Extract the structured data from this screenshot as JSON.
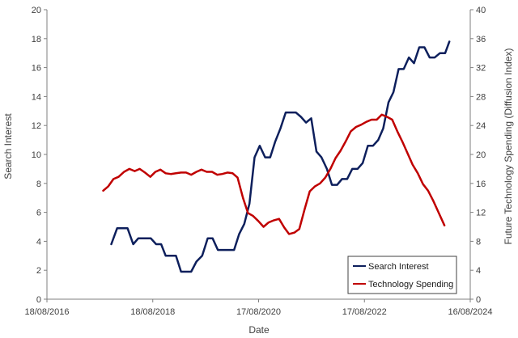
{
  "chart_data": {
    "type": "line",
    "title": "",
    "xlabel": "Date",
    "ylabel_left": "Search Interest",
    "ylabel_right": "Future Technology Spending (Diffusion Index)",
    "x_axis_type": "date",
    "xlim": [
      "2016-08-18",
      "2024-08-16"
    ],
    "x_ticks": [
      "18/08/2016",
      "18/08/2018",
      "17/08/2020",
      "17/08/2022",
      "16/08/2024"
    ],
    "ylim_left": [
      0,
      20
    ],
    "yticks_left": [
      "0",
      "2",
      "4",
      "6",
      "8",
      "10",
      "12",
      "14",
      "16",
      "18",
      "20"
    ],
    "ylim_right": [
      0,
      40
    ],
    "yticks_right": [
      "0",
      "4",
      "8",
      "12",
      "16",
      "20",
      "24",
      "28",
      "32",
      "36",
      "40"
    ],
    "grid": false,
    "legend_position": "bottom-right",
    "series": [
      {
        "name": "Search Interest",
        "axis": "left",
        "color": "#0d1f5c",
        "points": [
          [
            "2017-11-05",
            3.8
          ],
          [
            "2017-12-15",
            4.9
          ],
          [
            "2018-01-20",
            4.9
          ],
          [
            "2018-02-25",
            4.9
          ],
          [
            "2018-04-05",
            3.8
          ],
          [
            "2018-05-10",
            4.2
          ],
          [
            "2018-06-20",
            4.2
          ],
          [
            "2018-08-05",
            4.2
          ],
          [
            "2018-09-10",
            3.8
          ],
          [
            "2018-10-15",
            3.8
          ],
          [
            "2018-11-15",
            3.0
          ],
          [
            "2018-12-20",
            3.0
          ],
          [
            "2019-01-25",
            3.0
          ],
          [
            "2019-03-01",
            1.9
          ],
          [
            "2019-04-05",
            1.9
          ],
          [
            "2019-05-10",
            1.9
          ],
          [
            "2019-06-15",
            2.6
          ],
          [
            "2019-07-25",
            3.0
          ],
          [
            "2019-09-01",
            4.2
          ],
          [
            "2019-10-05",
            4.2
          ],
          [
            "2019-11-10",
            3.4
          ],
          [
            "2019-12-15",
            3.4
          ],
          [
            "2020-01-25",
            3.4
          ],
          [
            "2020-03-01",
            3.4
          ],
          [
            "2020-04-05",
            4.5
          ],
          [
            "2020-05-10",
            5.2
          ],
          [
            "2020-06-15",
            6.6
          ],
          [
            "2020-07-20",
            9.8
          ],
          [
            "2020-08-25",
            10.6
          ],
          [
            "2020-10-01",
            9.8
          ],
          [
            "2020-11-05",
            9.8
          ],
          [
            "2020-12-10",
            10.9
          ],
          [
            "2021-01-15",
            11.8
          ],
          [
            "2021-02-20",
            12.9
          ],
          [
            "2021-03-25",
            12.9
          ],
          [
            "2021-05-01",
            12.9
          ],
          [
            "2021-06-05",
            12.6
          ],
          [
            "2021-07-10",
            12.2
          ],
          [
            "2021-08-15",
            12.5
          ],
          [
            "2021-09-20",
            10.2
          ],
          [
            "2021-10-25",
            9.8
          ],
          [
            "2021-12-01",
            9.0
          ],
          [
            "2022-01-05",
            7.9
          ],
          [
            "2022-02-10",
            7.9
          ],
          [
            "2022-03-15",
            8.3
          ],
          [
            "2022-04-20",
            8.3
          ],
          [
            "2022-05-25",
            9.0
          ],
          [
            "2022-06-30",
            9.0
          ],
          [
            "2022-08-05",
            9.4
          ],
          [
            "2022-09-10",
            10.6
          ],
          [
            "2022-10-15",
            10.6
          ],
          [
            "2022-11-20",
            11.0
          ],
          [
            "2022-12-25",
            11.8
          ],
          [
            "2023-01-30",
            13.6
          ],
          [
            "2023-03-05",
            14.3
          ],
          [
            "2023-04-10",
            15.9
          ],
          [
            "2023-05-15",
            15.9
          ],
          [
            "2023-06-20",
            16.7
          ],
          [
            "2023-07-25",
            16.3
          ],
          [
            "2023-08-30",
            17.4
          ],
          [
            "2023-10-05",
            17.4
          ],
          [
            "2023-11-10",
            16.7
          ],
          [
            "2023-12-15",
            16.7
          ],
          [
            "2024-01-20",
            17.0
          ],
          [
            "2024-02-25",
            17.0
          ],
          [
            "2024-03-25",
            17.8
          ]
        ]
      },
      {
        "name": "Technology Spending",
        "axis": "right",
        "color": "#c00000",
        "points": [
          [
            "2017-09-10",
            15.0
          ],
          [
            "2017-10-15",
            15.6
          ],
          [
            "2017-11-20",
            16.6
          ],
          [
            "2017-12-25",
            16.9
          ],
          [
            "2018-02-01",
            17.6
          ],
          [
            "2018-03-10",
            18.0
          ],
          [
            "2018-04-15",
            17.7
          ],
          [
            "2018-05-20",
            18.0
          ],
          [
            "2018-06-25",
            17.5
          ],
          [
            "2018-08-01",
            16.9
          ],
          [
            "2018-09-05",
            17.6
          ],
          [
            "2018-10-10",
            17.9
          ],
          [
            "2018-11-15",
            17.4
          ],
          [
            "2018-12-20",
            17.3
          ],
          [
            "2019-01-25",
            17.4
          ],
          [
            "2019-03-01",
            17.5
          ],
          [
            "2019-04-05",
            17.5
          ],
          [
            "2019-05-10",
            17.2
          ],
          [
            "2019-06-15",
            17.6
          ],
          [
            "2019-07-20",
            17.9
          ],
          [
            "2019-08-25",
            17.6
          ],
          [
            "2019-10-01",
            17.6
          ],
          [
            "2019-11-05",
            17.2
          ],
          [
            "2019-12-10",
            17.3
          ],
          [
            "2020-01-15",
            17.5
          ],
          [
            "2020-02-20",
            17.4
          ],
          [
            "2020-03-25",
            16.8
          ],
          [
            "2020-05-01",
            14.0
          ],
          [
            "2020-06-05",
            11.9
          ],
          [
            "2020-07-10",
            11.5
          ],
          [
            "2020-08-15",
            10.8
          ],
          [
            "2020-09-20",
            10.0
          ],
          [
            "2020-10-25",
            10.6
          ],
          [
            "2020-12-01",
            10.9
          ],
          [
            "2021-01-05",
            11.1
          ],
          [
            "2021-02-10",
            9.9
          ],
          [
            "2021-03-15",
            9.0
          ],
          [
            "2021-04-20",
            9.2
          ],
          [
            "2021-05-25",
            9.7
          ],
          [
            "2021-06-30",
            12.4
          ],
          [
            "2021-08-05",
            14.9
          ],
          [
            "2021-09-10",
            15.6
          ],
          [
            "2021-10-15",
            16.0
          ],
          [
            "2021-11-20",
            16.8
          ],
          [
            "2021-12-25",
            18.0
          ],
          [
            "2022-01-30",
            19.5
          ],
          [
            "2022-03-05",
            20.5
          ],
          [
            "2022-04-10",
            21.8
          ],
          [
            "2022-05-15",
            23.2
          ],
          [
            "2022-06-20",
            23.8
          ],
          [
            "2022-07-25",
            24.1
          ],
          [
            "2022-08-30",
            24.5
          ],
          [
            "2022-10-05",
            24.8
          ],
          [
            "2022-11-10",
            24.8
          ],
          [
            "2022-12-15",
            25.5
          ],
          [
            "2023-01-20",
            25.2
          ],
          [
            "2023-02-25",
            24.8
          ],
          [
            "2023-04-01",
            23.2
          ],
          [
            "2023-05-05",
            21.8
          ],
          [
            "2023-06-10",
            20.2
          ],
          [
            "2023-07-15",
            18.6
          ],
          [
            "2023-08-20",
            17.4
          ],
          [
            "2023-09-25",
            15.9
          ],
          [
            "2023-10-30",
            15.0
          ],
          [
            "2023-12-05",
            13.6
          ],
          [
            "2024-01-10",
            12.0
          ],
          [
            "2024-02-20",
            10.2
          ]
        ]
      }
    ]
  }
}
